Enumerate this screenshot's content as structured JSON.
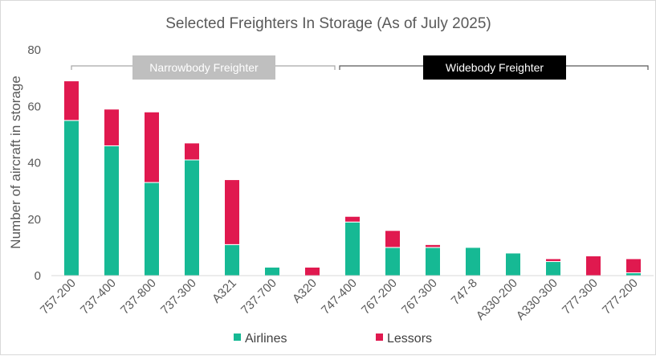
{
  "chart_data": {
    "type": "bar",
    "stacked": true,
    "title": "Selected Freighters In Storage (As of July 2025)",
    "xlabel": "",
    "ylabel": "Number of aircraft in storage",
    "ylim": [
      0,
      80
    ],
    "yticks": [
      0,
      20,
      40,
      60,
      80
    ],
    "grid": false,
    "legend_position": "bottom",
    "categories": [
      "757-200",
      "737-400",
      "737-800",
      "737-300",
      "A321",
      "737-700",
      "A320",
      "747-400",
      "767-200",
      "767-300",
      "747-8",
      "A330-200",
      "A330-300",
      "777-300",
      "777-200"
    ],
    "series": [
      {
        "name": "Airlines",
        "color": "#16b994",
        "values": [
          55,
          46,
          33,
          41,
          11,
          3,
          0,
          19,
          10,
          10,
          10,
          8,
          5,
          0,
          1
        ]
      },
      {
        "name": "Lessors",
        "color": "#e0194f",
        "values": [
          14,
          13,
          25,
          6,
          23,
          0,
          3,
          2,
          6,
          1,
          0,
          0,
          1,
          7,
          5
        ]
      }
    ],
    "groups": [
      {
        "label": "Narrowbody Freighter",
        "from": "757-200",
        "to": "A320",
        "bg": "#bfbfbf",
        "fg": "#ffffff"
      },
      {
        "label": "Widebody Freighter",
        "from": "747-400",
        "to": "777-200",
        "bg": "#000000",
        "fg": "#ffffff"
      }
    ]
  }
}
